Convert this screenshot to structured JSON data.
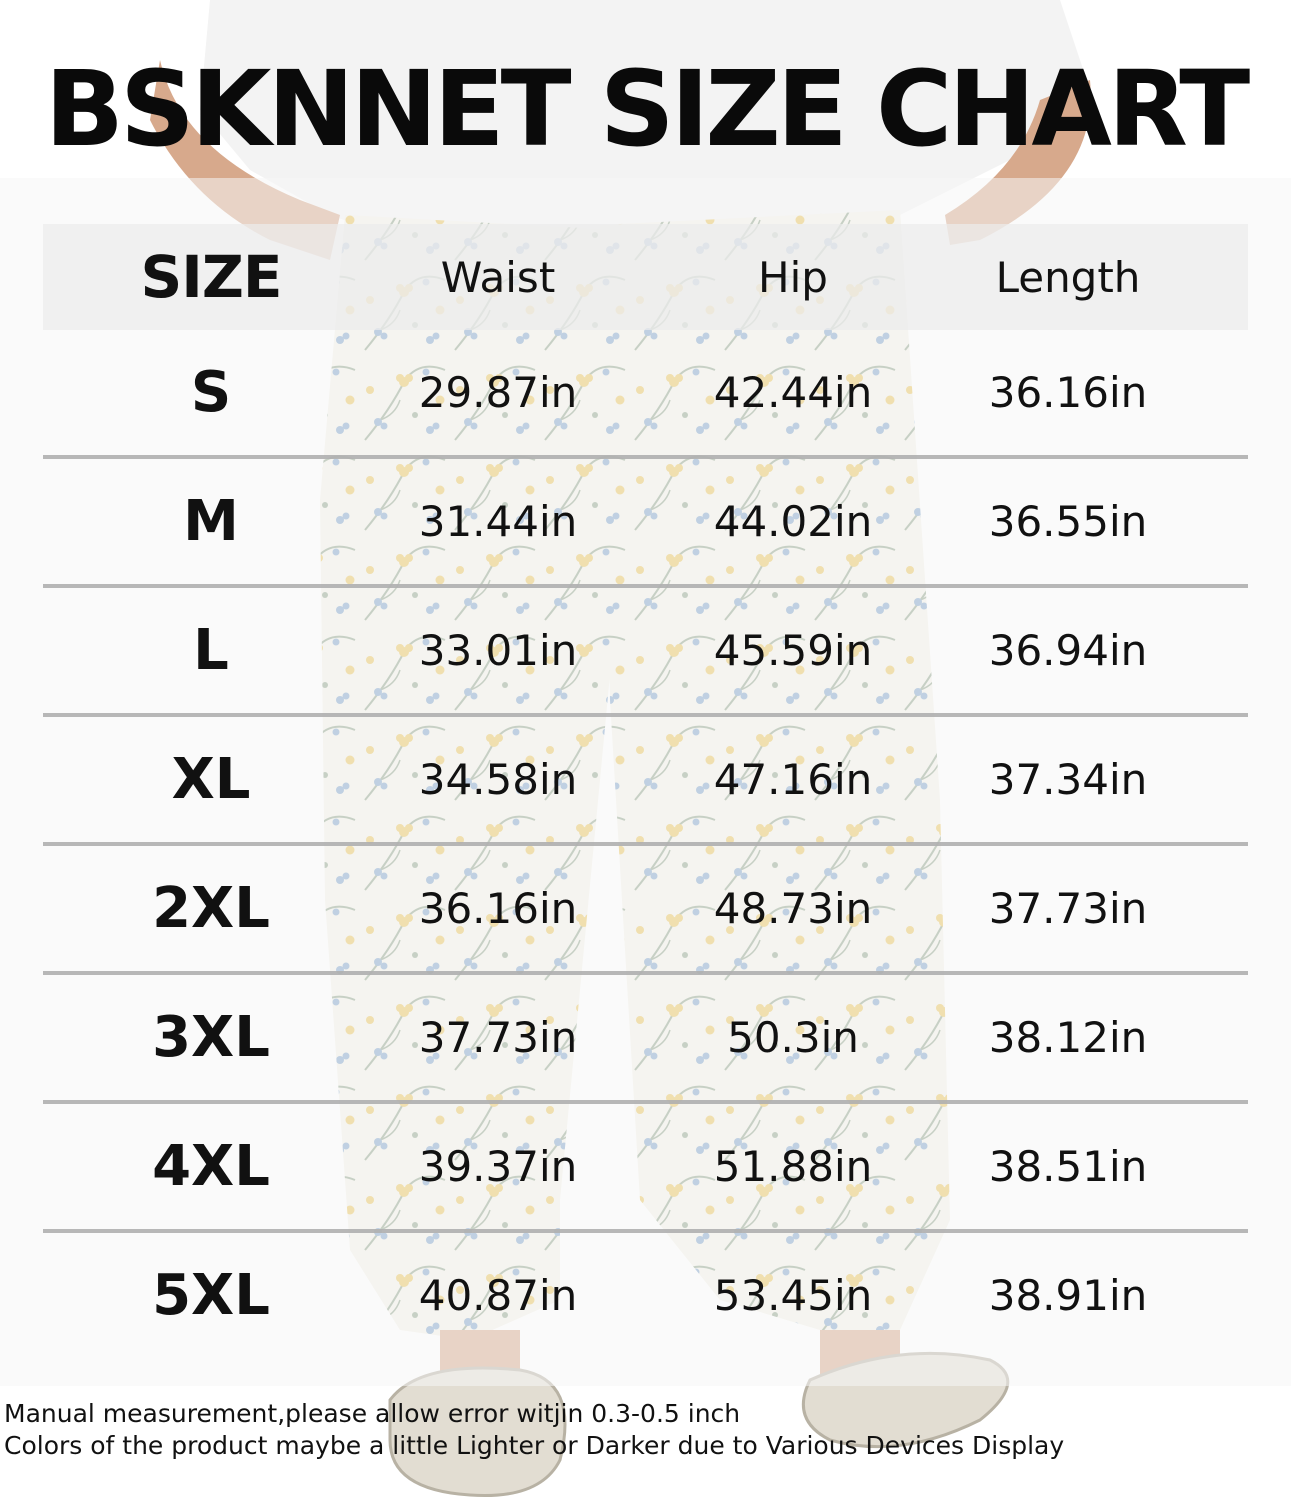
{
  "title": "BSKNNET SIZE CHART",
  "table": {
    "headers": [
      "SIZE",
      "Waist",
      "Hip",
      "Length"
    ],
    "rows": [
      {
        "size": "S",
        "waist": "29.87in",
        "hip": "42.44in",
        "length": "36.16in"
      },
      {
        "size": "M",
        "waist": "31.44in",
        "hip": "44.02in",
        "length": "36.55in"
      },
      {
        "size": "L",
        "waist": "33.01in",
        "hip": "45.59in",
        "length": "36.94in"
      },
      {
        "size": "XL",
        "waist": "34.58in",
        "hip": "47.16in",
        "length": "37.34in"
      },
      {
        "size": "2XL",
        "waist": "36.16in",
        "hip": "48.73in",
        "length": "37.73in"
      },
      {
        "size": "3XL",
        "waist": "37.73in",
        "hip": "50.3in",
        "length": "38.12in"
      },
      {
        "size": "4XL",
        "waist": "39.37in",
        "hip": "51.88in",
        "length": "38.51in"
      },
      {
        "size": "5XL",
        "waist": "40.87in",
        "hip": "53.45in",
        "length": "38.91in"
      }
    ]
  },
  "notes": {
    "line1": "Manual measurement,please allow error witjin 0.3-0.5 inch",
    "line2": "Colors of the product maybe a little Lighter or Darker due to Various Devices Display"
  },
  "colors": {
    "pants_base": "#f4f2e8",
    "flower_blue": "#7fa3c9",
    "flower_yellow": "#e8c35a",
    "leaf_green": "#8fa38a",
    "shirt": "#f3f3f3"
  }
}
